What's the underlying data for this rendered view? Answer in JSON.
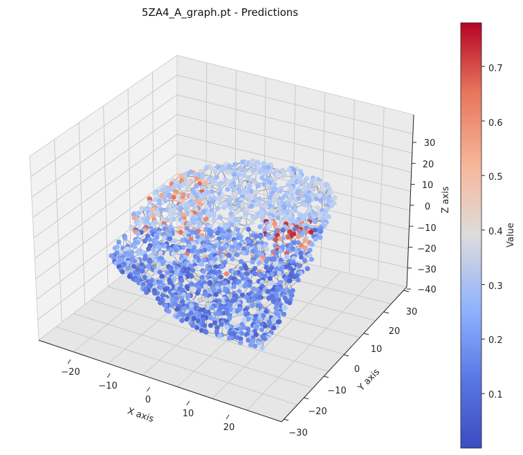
{
  "chart_data": {
    "type": "scatter",
    "title": "5ZA4_A_graph.pt - Predictions",
    "xlabel": "X axis",
    "ylabel": "Y axis",
    "zlabel": "Z axis",
    "colorbar_label": "Value",
    "colormap": "coolwarm",
    "colormap_colors": [
      "#3b4cc0",
      "#7092f3",
      "#aac7fd",
      "#dddcdc",
      "#f7b89c",
      "#e7745b",
      "#b40426"
    ],
    "edge_color": "#808080",
    "grid": true,
    "projection": "3d",
    "xlim": [
      -28,
      28
    ],
    "ylim": [
      -32,
      32
    ],
    "zlim": [
      -40,
      40
    ],
    "x_ticks": [
      "−20",
      "−10",
      "0",
      "10",
      "20"
    ],
    "y_ticks": [
      "−30",
      "−20",
      "−10",
      "0",
      "10",
      "20",
      "30"
    ],
    "z_ticks": [
      "−40",
      "−30",
      "−20",
      "−10",
      "0",
      "10",
      "20",
      "30"
    ],
    "colorbar_range": [
      0.0,
      0.78
    ],
    "colorbar_ticks": [
      "0.1",
      "0.2",
      "0.3",
      "0.4",
      "0.5",
      "0.6",
      "0.7"
    ],
    "point_count_estimate": 1800,
    "value_distribution": "low values (~0.05–0.15) dominate the lower/front region; mid values (~0.25–0.35) on top surface; high values (~0.5–0.75) in upper-left and right patches"
  }
}
